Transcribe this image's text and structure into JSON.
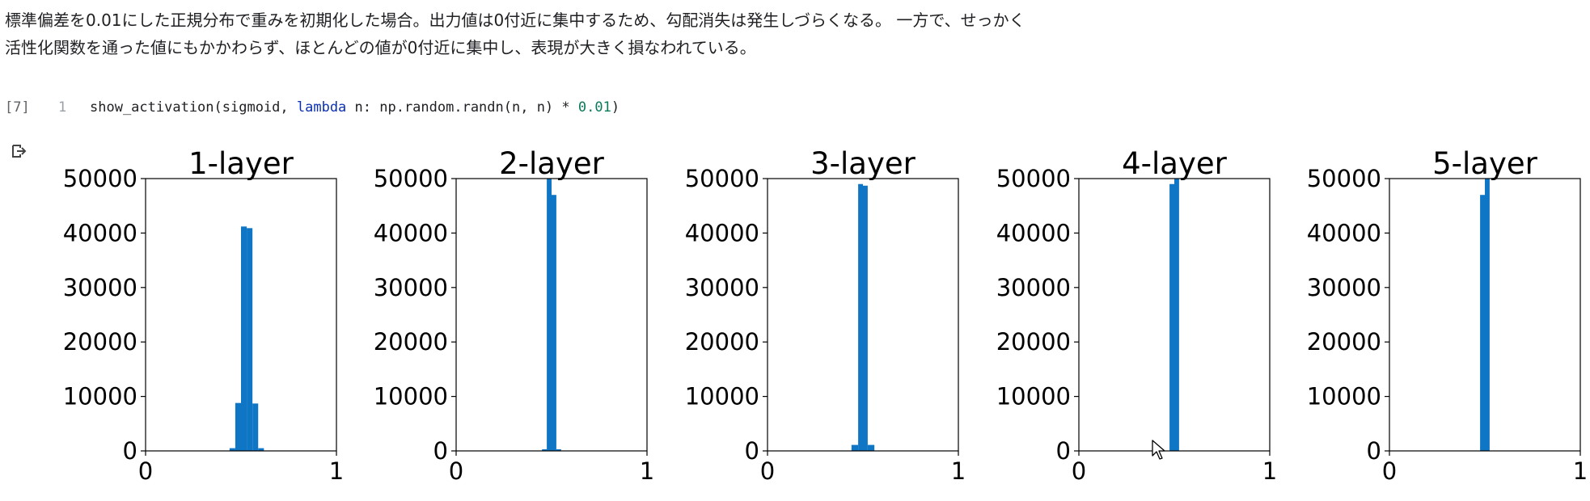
{
  "notebook": {
    "markdown_cell": {
      "lines": [
        "標準偏差を0.01にした正規分布で重みを初期化した場合。出力値は0付近に集中するため、勾配消失は発生しづらくなる。 一方で、せっかく",
        "活性化関数を通った値にもかかわらず、ほとんどの値が0付近に集中し、表現が大きく損なわれている。"
      ]
    },
    "code_cell": {
      "execution_count": "[7]",
      "line_number": "1",
      "code": {
        "func": "show_activation(sigmoid, ",
        "keyword": "lambda",
        "rest": " n: np.random.randn(n, n) * ",
        "number": "0.01",
        "close": ")"
      }
    },
    "output": {
      "icon": "output-redirect-icon"
    },
    "colors": {
      "bar": "#0f75c5",
      "bar_dark": "#3a5fb0",
      "axis": "#000000",
      "keyword": "#0b2fb1",
      "number": "#0b7a5a"
    }
  },
  "chart_data": [
    {
      "type": "bar",
      "title": "1-layer",
      "xlim": [
        0,
        1
      ],
      "ylim": [
        0,
        50000
      ],
      "xticks": [
        "0",
        "1"
      ],
      "yticks": [
        "0",
        "10000",
        "20000",
        "30000",
        "40000",
        "50000"
      ],
      "bins": [
        {
          "x0": 0.44,
          "x1": 0.47,
          "value": 500
        },
        {
          "x0": 0.47,
          "x1": 0.5,
          "value": 8800
        },
        {
          "x0": 0.5,
          "x1": 0.53,
          "value": 41200
        },
        {
          "x0": 0.53,
          "x1": 0.56,
          "value": 40900
        },
        {
          "x0": 0.56,
          "x1": 0.59,
          "value": 8700
        },
        {
          "x0": 0.59,
          "x1": 0.62,
          "value": 500
        }
      ]
    },
    {
      "type": "bar",
      "title": "2-layer",
      "xlim": [
        0,
        1
      ],
      "ylim": [
        0,
        50000
      ],
      "xticks": [
        "0",
        "1"
      ],
      "yticks": [
        "0",
        "10000",
        "20000",
        "30000",
        "40000",
        "50000"
      ],
      "bins": [
        {
          "x0": 0.45,
          "x1": 0.475,
          "value": 300
        },
        {
          "x0": 0.475,
          "x1": 0.5,
          "value": 50000
        },
        {
          "x0": 0.5,
          "x1": 0.525,
          "value": 47000
        },
        {
          "x0": 0.525,
          "x1": 0.55,
          "value": 300
        }
      ]
    },
    {
      "type": "bar",
      "title": "3-layer",
      "xlim": [
        0,
        1
      ],
      "ylim": [
        0,
        50000
      ],
      "xticks": [
        "0",
        "1"
      ],
      "yticks": [
        "0",
        "10000",
        "20000",
        "30000",
        "40000",
        "50000"
      ],
      "bins": [
        {
          "x0": 0.44,
          "x1": 0.475,
          "value": 1100
        },
        {
          "x0": 0.475,
          "x1": 0.5,
          "value": 49000
        },
        {
          "x0": 0.5,
          "x1": 0.525,
          "value": 48700
        },
        {
          "x0": 0.525,
          "x1": 0.56,
          "value": 1100
        }
      ]
    },
    {
      "type": "bar",
      "title": "4-layer",
      "xlim": [
        0,
        1
      ],
      "ylim": [
        0,
        50000
      ],
      "xticks": [
        "0",
        "1"
      ],
      "yticks": [
        "0",
        "10000",
        "20000",
        "30000",
        "40000",
        "50000"
      ],
      "bins": [
        {
          "x0": 0.475,
          "x1": 0.5,
          "value": 49000
        },
        {
          "x0": 0.5,
          "x1": 0.525,
          "value": 50000
        }
      ]
    },
    {
      "type": "bar",
      "title": "5-layer",
      "xlim": [
        0,
        1
      ],
      "ylim": [
        0,
        50000
      ],
      "xticks": [
        "0",
        "1"
      ],
      "yticks": [
        "0",
        "10000",
        "20000",
        "30000",
        "40000",
        "50000"
      ],
      "bins": [
        {
          "x0": 0.475,
          "x1": 0.5,
          "value": 47000
        },
        {
          "x0": 0.5,
          "x1": 0.525,
          "value": 50000
        }
      ]
    }
  ]
}
